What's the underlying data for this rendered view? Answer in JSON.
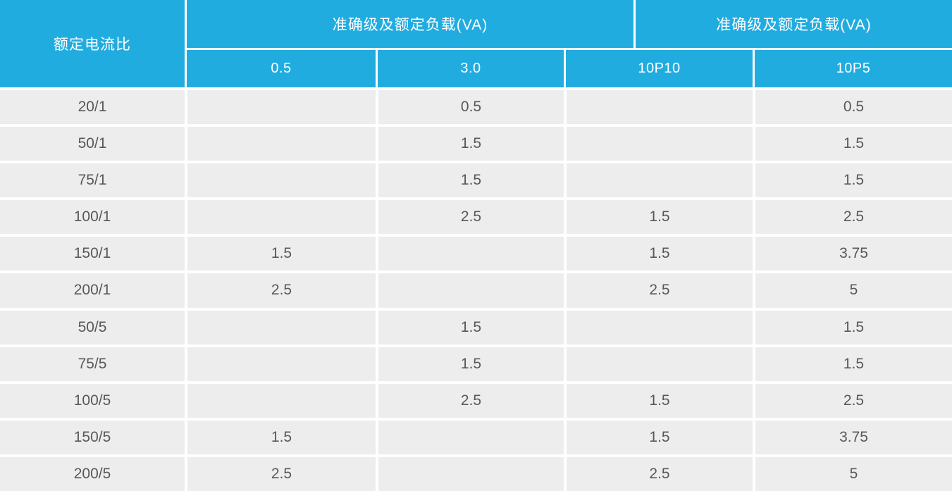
{
  "chart_data": {
    "type": "table",
    "row_header_label": "额定电流比",
    "group_headers": [
      "准确级及额定负载(VA)",
      "准确级及额定负载(VA)"
    ],
    "columns": [
      "0.5",
      "3.0",
      "10P10",
      "10P5"
    ],
    "rows": [
      {
        "ratio": "20/1",
        "values": [
          "",
          "0.5",
          "",
          "0.5"
        ]
      },
      {
        "ratio": "50/1",
        "values": [
          "",
          "1.5",
          "",
          "1.5"
        ]
      },
      {
        "ratio": "75/1",
        "values": [
          "",
          "1.5",
          "",
          "1.5"
        ]
      },
      {
        "ratio": "100/1",
        "values": [
          "",
          "2.5",
          "1.5",
          "2.5"
        ]
      },
      {
        "ratio": "150/1",
        "values": [
          "1.5",
          "",
          "1.5",
          "3.75"
        ]
      },
      {
        "ratio": "200/1",
        "values": [
          "2.5",
          "",
          "2.5",
          "5"
        ]
      },
      {
        "ratio": "50/5",
        "values": [
          "",
          "1.5",
          "",
          "1.5"
        ]
      },
      {
        "ratio": "75/5",
        "values": [
          "",
          "1.5",
          "",
          "1.5"
        ]
      },
      {
        "ratio": "100/5",
        "values": [
          "",
          "2.5",
          "1.5",
          "2.5"
        ]
      },
      {
        "ratio": "150/5",
        "values": [
          "1.5",
          "",
          "1.5",
          "3.75"
        ]
      },
      {
        "ratio": "200/5",
        "values": [
          "2.5",
          "",
          "2.5",
          "5"
        ]
      }
    ]
  },
  "colors": {
    "header_blue": "#21ace0",
    "header_text": "#ffffff",
    "row_gray": "#ededed",
    "divider_white": "#ffffff",
    "body_text": "#58585a"
  }
}
